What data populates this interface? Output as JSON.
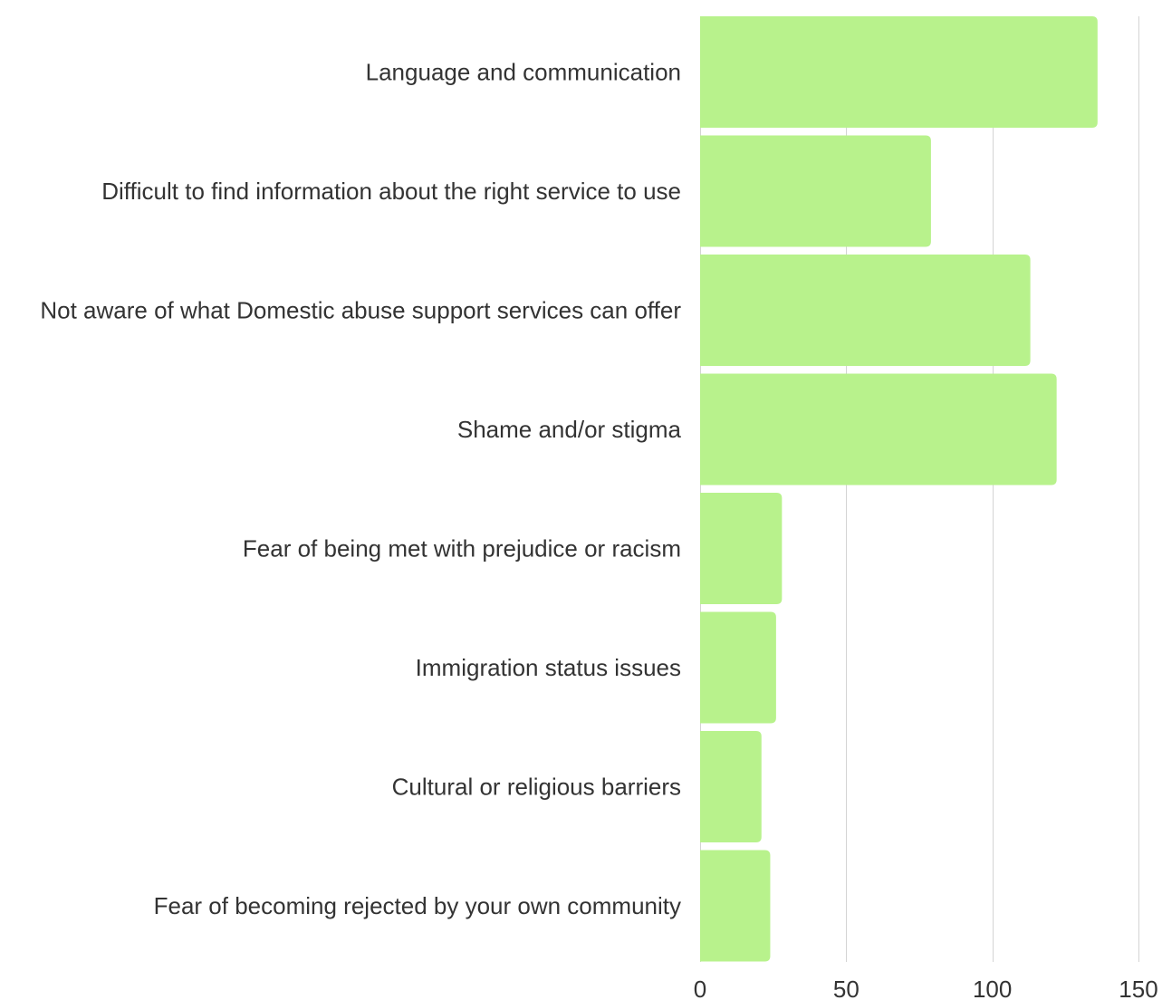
{
  "chart_data": {
    "type": "bar",
    "orientation": "horizontal",
    "categories": [
      "Language and communication",
      "Difficult to find information about the right service to use",
      "Not aware of what Domestic abuse support services can offer",
      "Shame and/or stigma",
      "Fear of being met with prejudice or racism",
      "Immigration status issues",
      "Cultural or religious barriers ",
      "Fear of becoming rejected by your own community"
    ],
    "values": [
      136,
      79,
      113,
      122,
      28,
      26,
      21,
      24
    ],
    "xlim": [
      0,
      150
    ],
    "ticks": [
      0,
      50,
      100,
      150
    ],
    "tick_labels": [
      "0",
      "50",
      "100",
      "150"
    ],
    "grid": true,
    "bar_color": "#b8f28c",
    "title": "",
    "xlabel": "",
    "ylabel": ""
  }
}
